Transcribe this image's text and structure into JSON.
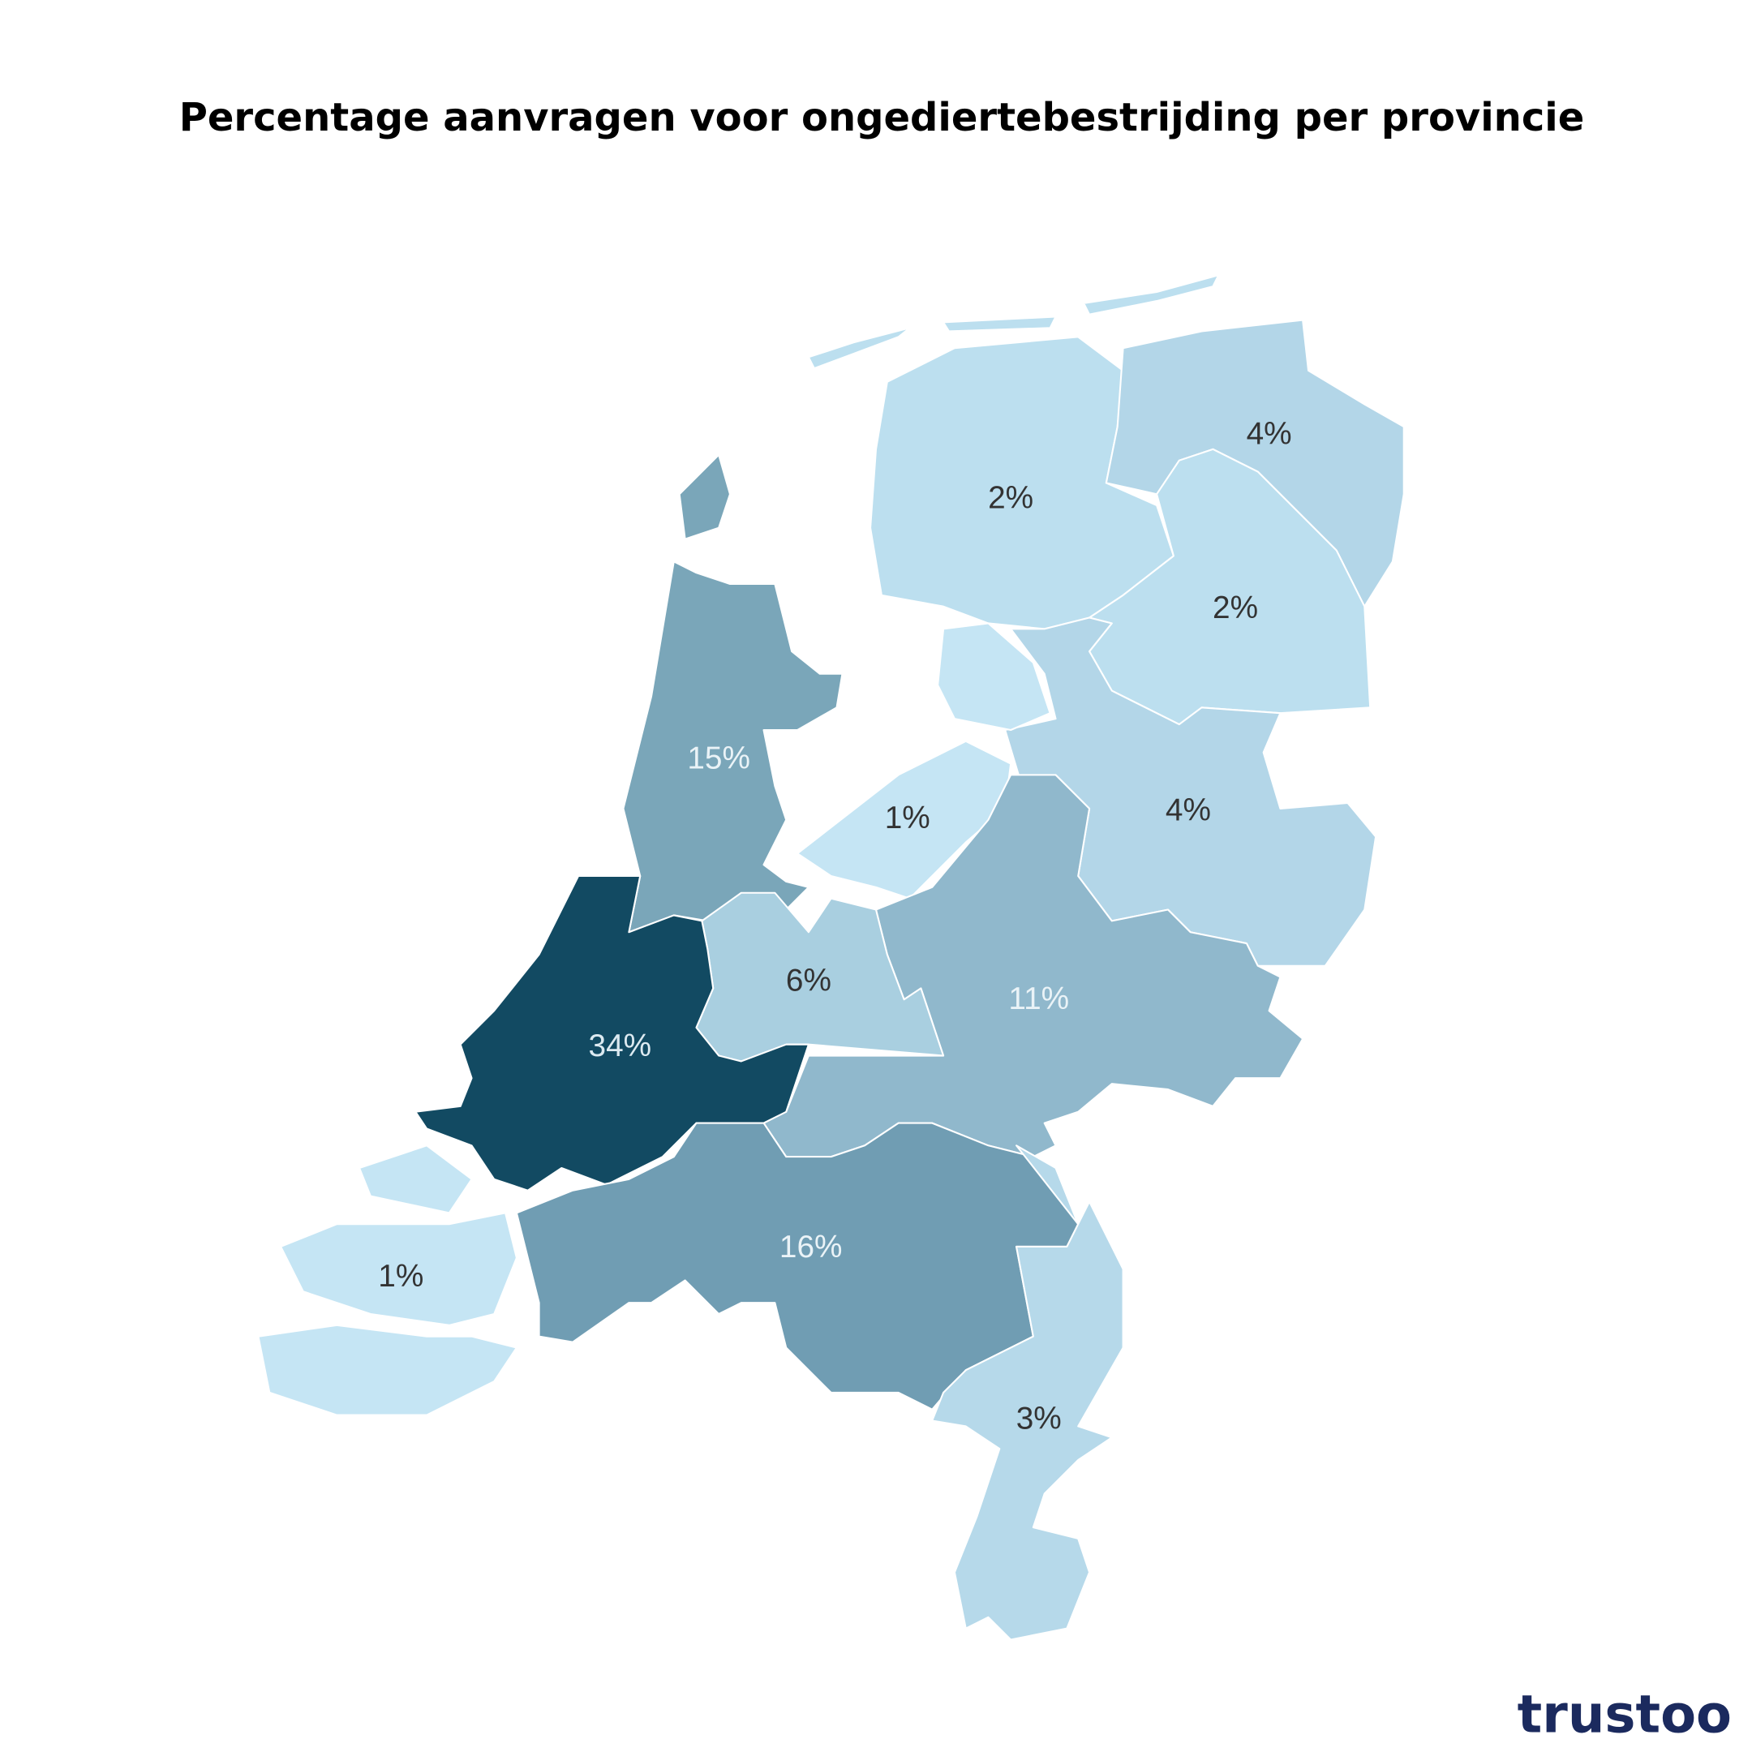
{
  "chart_data": {
    "type": "choropleth",
    "title": "Percentage aanvragen voor ongediertebestrijding per provincie",
    "values": [
      2,
      4,
      2,
      4,
      1,
      15,
      11,
      6,
      34,
      1,
      16,
      3
    ],
    "value_labels": [
      "2%",
      "4%",
      "2%",
      "4%",
      "1%",
      "15%",
      "11%",
      "6%",
      "34%",
      "1%",
      "16%",
      "3%"
    ],
    "colors": [
      "#bcdfef",
      "#b3d6e8",
      "#bcdfef",
      "#b3d6e8",
      "#c5e5f4",
      "#7aa6b9",
      "#90b8cc",
      "#a9cfe0",
      "#124a62",
      "#c5e5f4",
      "#709db3",
      "#b6d9ea"
    ]
  },
  "logo": "trustoo"
}
